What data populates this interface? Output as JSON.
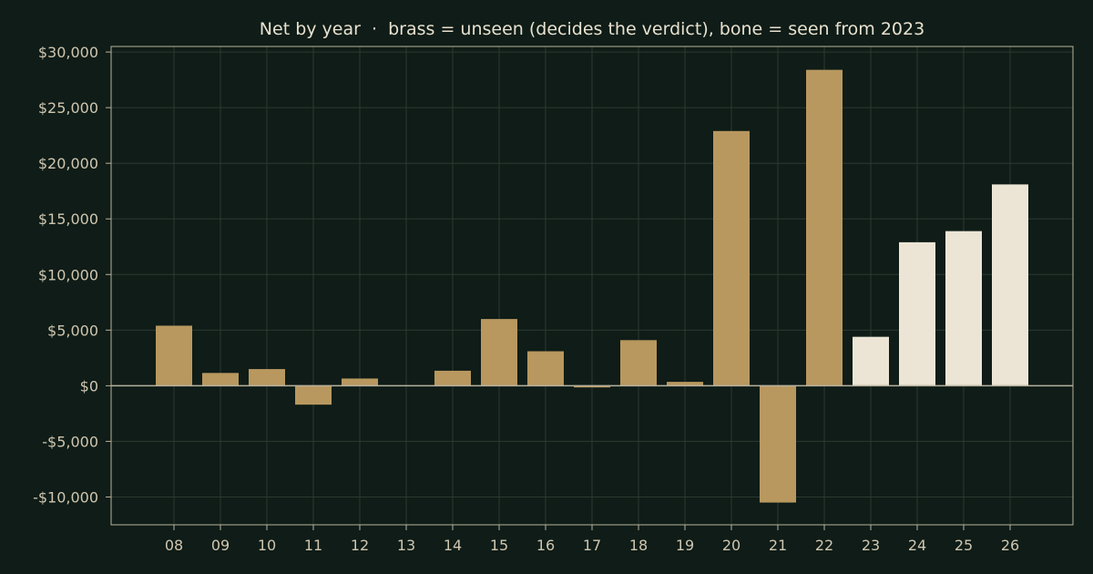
{
  "colors": {
    "background": "#0f1c17",
    "brass": "#b8985f",
    "bone": "#ece5d6",
    "axis": "#b9b29e",
    "grid": "#2c3a32",
    "text": "#cfc6b0"
  },
  "chart_data": {
    "type": "bar",
    "title": "Net by year  ·  brass = unseen (decides the verdict), bone = seen from 2023",
    "xlabel": "",
    "ylabel": "",
    "categories": [
      "08",
      "09",
      "10",
      "11",
      "12",
      "13",
      "14",
      "15",
      "16",
      "17",
      "18",
      "19",
      "20",
      "21",
      "22",
      "23",
      "24",
      "25",
      "26"
    ],
    "values": [
      5400,
      1150,
      1500,
      -1700,
      650,
      0,
      1350,
      6000,
      3100,
      -150,
      4100,
      350,
      22900,
      -10500,
      28400,
      4400,
      12900,
      13900,
      18100
    ],
    "groups": [
      "unseen",
      "unseen",
      "unseen",
      "unseen",
      "unseen",
      "unseen",
      "unseen",
      "unseen",
      "unseen",
      "unseen",
      "unseen",
      "unseen",
      "unseen",
      "unseen",
      "unseen",
      "seen",
      "seen",
      "seen",
      "seen"
    ],
    "y_ticks": [
      30000,
      25000,
      20000,
      15000,
      10000,
      5000,
      0,
      -5000,
      -10000
    ],
    "y_tick_labels": [
      "$30,000",
      "$25,000",
      "$20,000",
      "$15,000",
      "$10,000",
      "$5,000",
      "$0",
      "-$5,000",
      "-$10,000"
    ],
    "ylim": [
      -12500,
      30500
    ],
    "grid": true,
    "legend": "none"
  }
}
